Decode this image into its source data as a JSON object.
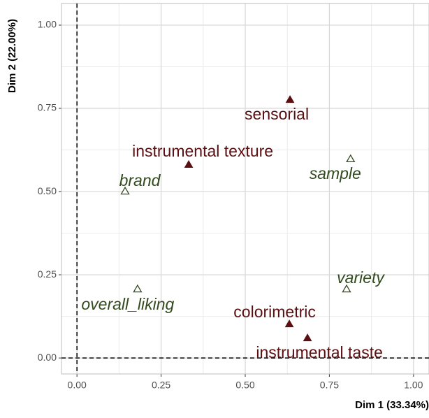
{
  "chart_data": {
    "type": "scatter",
    "xlabel": "Dim 1 (33.34%)",
    "ylabel": "Dim 2 (22.00%)",
    "xlim": [
      -0.046,
      1.046
    ],
    "ylim": [
      -0.048,
      1.065
    ],
    "xticks": [
      {
        "value": 0,
        "label": "0.00"
      },
      {
        "value": 0.25,
        "label": "0.25"
      },
      {
        "value": 0.5,
        "label": "0.50"
      },
      {
        "value": 0.75,
        "label": "0.75"
      },
      {
        "value": 1,
        "label": "1.00"
      }
    ],
    "yticks": [
      {
        "value": 0,
        "label": "0.00"
      },
      {
        "value": 0.25,
        "label": "0.25"
      },
      {
        "value": 0.5,
        "label": "0.50"
      },
      {
        "value": 0.75,
        "label": "0.75"
      },
      {
        "value": 1,
        "label": "1.00"
      }
    ],
    "grid": true,
    "series": [
      {
        "color": "#5a0f12",
        "marker": "filled-triangle",
        "labels": [
          "sensorial",
          "instrumental texture",
          "colorimetric",
          "instrumental taste"
        ],
        "x": [
          0.633,
          0.332,
          0.631,
          0.685
        ],
        "values": [
          0.777,
          0.582,
          0.103,
          0.061
        ]
      },
      {
        "color": "#324a1e",
        "marker": "open-triangle",
        "labels": [
          "sample",
          "brand",
          "variety",
          "overall_liking"
        ],
        "x": [
          0.813,
          0.143,
          0.801,
          0.18
        ],
        "values": [
          0.599,
          0.502,
          0.208,
          0.208
        ]
      }
    ]
  }
}
